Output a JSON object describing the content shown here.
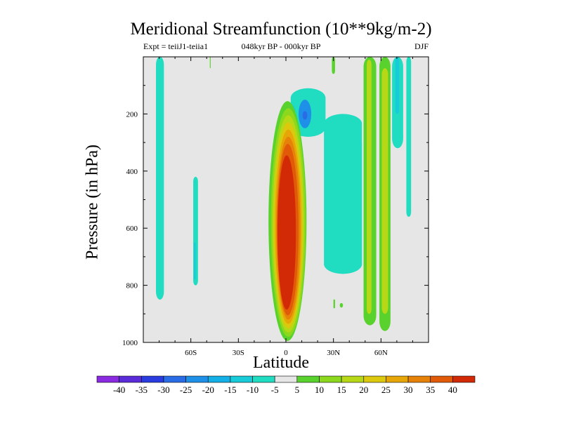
{
  "chart_data": {
    "type": "contour",
    "title": "Meridional Streamfunction (10**9kg/m-2)",
    "subtitle_left": "Expt = teiiJ1-teiia1",
    "subtitle_center": "048kyr BP - 000kyr BP",
    "subtitle_right": "DJF",
    "xlabel": "Latitude",
    "ylabel": "Pressure (in hPa)",
    "xlim": [
      -90,
      90
    ],
    "ylim": [
      1000,
      0
    ],
    "x_ticks": [
      -60,
      -30,
      0,
      30,
      60
    ],
    "x_tick_labels": [
      "60S",
      "30S",
      "0",
      "30N",
      "60N"
    ],
    "y_ticks": [
      200,
      400,
      600,
      800,
      1000
    ],
    "y_tick_labels": [
      "200",
      "400",
      "600",
      "800",
      "1000"
    ],
    "colorbar": {
      "levels": [
        -40,
        -35,
        -30,
        -25,
        -20,
        -15,
        -10,
        -5,
        5,
        10,
        15,
        20,
        25,
        30,
        35,
        40
      ],
      "labels": [
        "-40",
        "-35",
        "-30",
        "-25",
        "-20",
        "-15",
        "-10",
        "-5",
        "5",
        "10",
        "15",
        "20",
        "25",
        "30",
        "35",
        "40"
      ],
      "colors": [
        "#8a2be2",
        "#5a2bd9",
        "#2a3ce0",
        "#2a6be6",
        "#1e90e8",
        "#12b0e6",
        "#18cbd8",
        "#20dcc0",
        "#e6e6e6",
        "#5ad22e",
        "#8cd81c",
        "#b7d816",
        "#dcc80c",
        "#e6a608",
        "#e68208",
        "#e05a08",
        "#d22a06"
      ]
    },
    "regions": [
      {
        "kind": "positive-cell",
        "lat_range": [
          -12,
          13
        ],
        "p_range": [
          160,
          990
        ],
        "max_level": 40
      },
      {
        "kind": "negative-band",
        "lat_range": [
          -82,
          -78
        ],
        "p_range": [
          0,
          850
        ],
        "level": -10
      },
      {
        "kind": "negative-band",
        "lat_range": [
          -58,
          -56
        ],
        "p_range": [
          420,
          800
        ],
        "level": -10
      },
      {
        "kind": "negative-cell",
        "lat_range": [
          -5,
          20
        ],
        "p_range": [
          100,
          270
        ],
        "level": -20
      },
      {
        "kind": "negative-band",
        "lat_range": [
          25,
          46
        ],
        "p_range": [
          200,
          760
        ],
        "level": -5
      },
      {
        "kind": "positive-band",
        "lat_range": [
          49,
          56
        ],
        "p_range": [
          0,
          940
        ],
        "level": 15
      },
      {
        "kind": "positive-band",
        "lat_range": [
          59,
          65
        ],
        "p_range": [
          0,
          960
        ],
        "level": 20
      },
      {
        "kind": "negative-band",
        "lat_range": [
          67,
          73
        ],
        "p_range": [
          0,
          320
        ],
        "level": -10
      }
    ]
  }
}
